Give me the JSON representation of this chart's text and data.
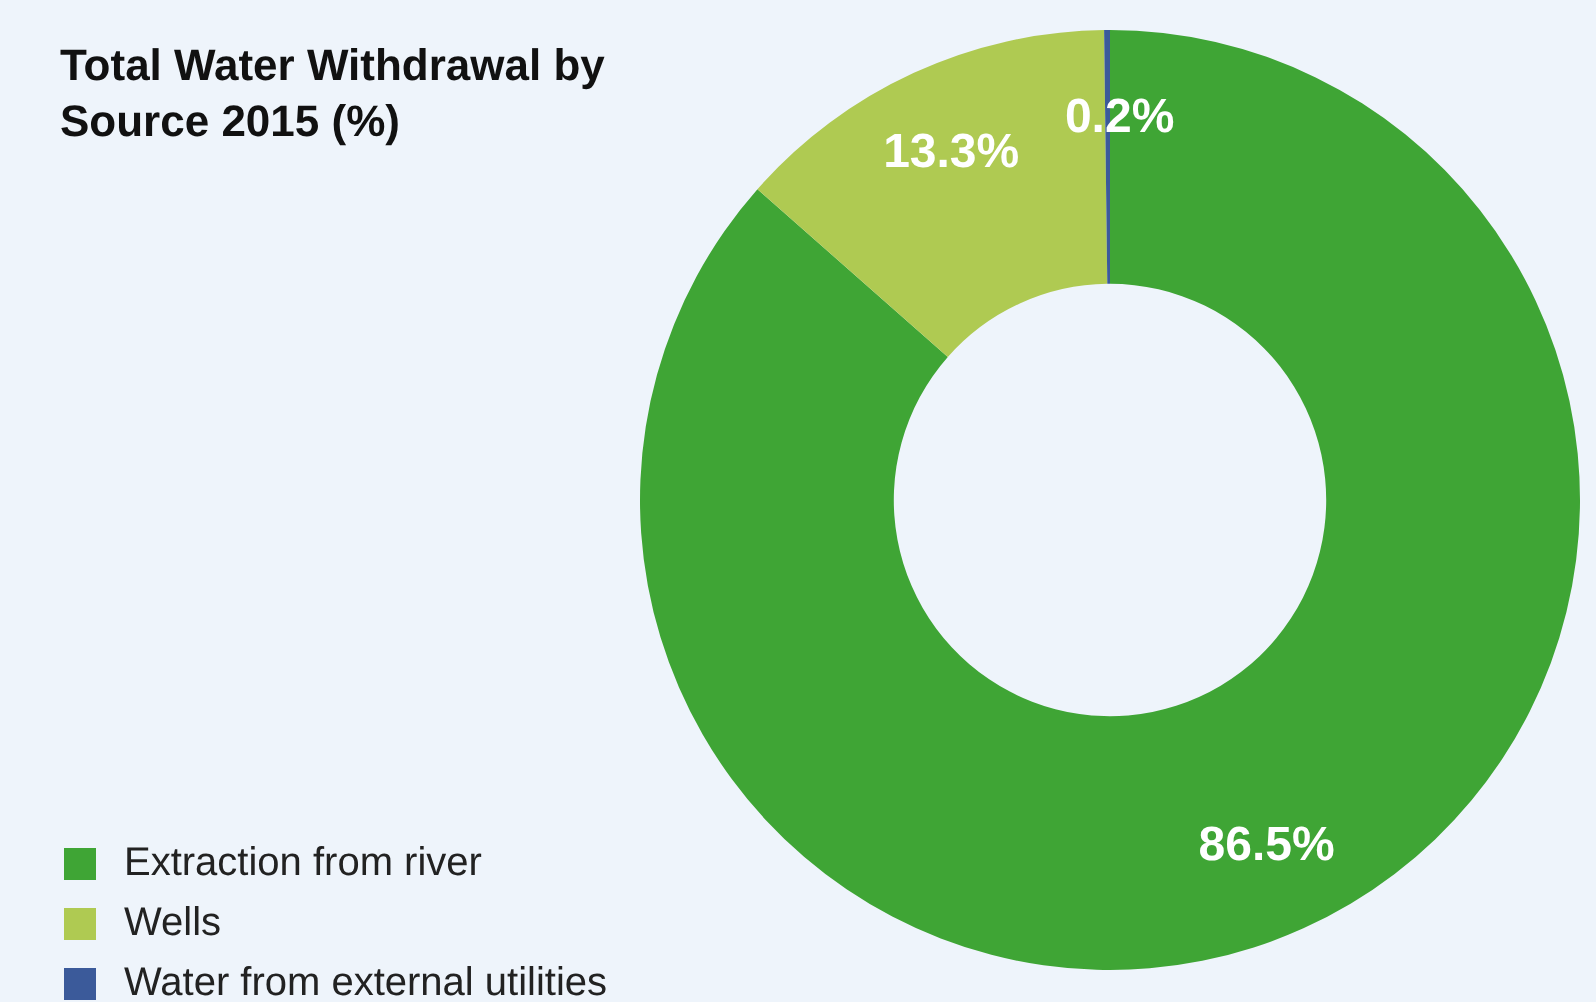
{
  "chart_data": {
    "type": "donut",
    "title": "Total Water Withdrawal by Source 2015 (%)",
    "categories": [
      "Extraction from river",
      "Wells",
      "Water from external utilities"
    ],
    "values": [
      86.5,
      13.3,
      0.2
    ],
    "colors": [
      "#3fa535",
      "#afca52",
      "#3b5a9a"
    ],
    "value_labels": [
      "86.5%",
      "13.3%",
      "0.2%"
    ],
    "legend": "bottom left"
  }
}
